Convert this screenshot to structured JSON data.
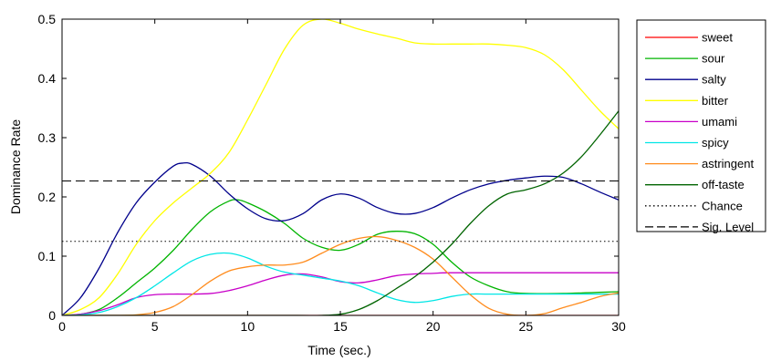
{
  "chart_data": {
    "type": "line",
    "title": "",
    "xlabel": "Time (sec.)",
    "ylabel": "Dominance Rate",
    "xlim": [
      0,
      30
    ],
    "ylim": [
      0,
      0.5
    ],
    "xticks": [
      0,
      5,
      10,
      15,
      20,
      25,
      30
    ],
    "yticks": [
      0,
      0.1,
      0.2,
      0.3,
      0.4,
      0.5
    ],
    "xtick_labels": [
      "0",
      "5",
      "10",
      "15",
      "20",
      "25",
      "30"
    ],
    "ytick_labels": [
      "0",
      "0.1",
      "0.2",
      "0.3",
      "0.4",
      "0.5"
    ],
    "grid": false,
    "legend_position": "outside-right-top",
    "series": [
      {
        "name": "sweet",
        "color": "#ff0000",
        "points": [
          [
            0,
            0
          ],
          [
            5,
            0
          ],
          [
            10,
            0
          ],
          [
            15,
            0
          ],
          [
            20,
            0
          ],
          [
            25,
            0
          ],
          [
            30,
            0
          ]
        ]
      },
      {
        "name": "sour",
        "color": "#00b400",
        "points": [
          [
            0,
            0
          ],
          [
            1,
            0.002
          ],
          [
            2,
            0.01
          ],
          [
            3,
            0.03
          ],
          [
            4,
            0.055
          ],
          [
            5,
            0.08
          ],
          [
            6,
            0.11
          ],
          [
            7,
            0.145
          ],
          [
            8,
            0.175
          ],
          [
            9,
            0.193
          ],
          [
            9.5,
            0.195
          ],
          [
            10,
            0.19
          ],
          [
            11,
            0.175
          ],
          [
            12,
            0.155
          ],
          [
            13,
            0.13
          ],
          [
            14,
            0.115
          ],
          [
            15,
            0.11
          ],
          [
            16,
            0.12
          ],
          [
            17,
            0.137
          ],
          [
            18,
            0.142
          ],
          [
            19,
            0.138
          ],
          [
            20,
            0.12
          ],
          [
            21,
            0.09
          ],
          [
            22,
            0.065
          ],
          [
            23,
            0.05
          ],
          [
            24,
            0.04
          ],
          [
            25,
            0.037
          ],
          [
            27,
            0.037
          ],
          [
            30,
            0.04
          ]
        ]
      },
      {
        "name": "salty",
        "color": "#00008b",
        "points": [
          [
            0,
            0
          ],
          [
            1,
            0.03
          ],
          [
            2,
            0.08
          ],
          [
            3,
            0.14
          ],
          [
            4,
            0.19
          ],
          [
            5,
            0.225
          ],
          [
            6,
            0.252
          ],
          [
            6.5,
            0.257
          ],
          [
            7,
            0.255
          ],
          [
            8,
            0.235
          ],
          [
            9,
            0.205
          ],
          [
            10,
            0.18
          ],
          [
            11,
            0.163
          ],
          [
            12,
            0.16
          ],
          [
            13,
            0.172
          ],
          [
            14,
            0.195
          ],
          [
            15,
            0.205
          ],
          [
            16,
            0.198
          ],
          [
            17,
            0.182
          ],
          [
            18,
            0.172
          ],
          [
            19,
            0.172
          ],
          [
            20,
            0.182
          ],
          [
            21,
            0.198
          ],
          [
            22,
            0.212
          ],
          [
            23,
            0.222
          ],
          [
            24,
            0.228
          ],
          [
            25,
            0.232
          ],
          [
            26,
            0.235
          ],
          [
            27,
            0.233
          ],
          [
            28,
            0.222
          ],
          [
            29,
            0.208
          ],
          [
            30,
            0.195
          ]
        ]
      },
      {
        "name": "bitter",
        "color": "#ffff00",
        "points": [
          [
            0,
            0
          ],
          [
            1,
            0.01
          ],
          [
            2,
            0.03
          ],
          [
            3,
            0.07
          ],
          [
            4,
            0.12
          ],
          [
            5,
            0.16
          ],
          [
            6,
            0.19
          ],
          [
            7,
            0.215
          ],
          [
            8,
            0.24
          ],
          [
            9,
            0.275
          ],
          [
            10,
            0.33
          ],
          [
            11,
            0.39
          ],
          [
            12,
            0.45
          ],
          [
            13,
            0.49
          ],
          [
            14,
            0.5
          ],
          [
            15,
            0.493
          ],
          [
            16,
            0.483
          ],
          [
            17,
            0.475
          ],
          [
            18,
            0.468
          ],
          [
            19,
            0.46
          ],
          [
            20,
            0.458
          ],
          [
            21,
            0.458
          ],
          [
            22,
            0.458
          ],
          [
            23,
            0.458
          ],
          [
            24,
            0.456
          ],
          [
            25,
            0.452
          ],
          [
            26,
            0.44
          ],
          [
            27,
            0.415
          ],
          [
            28,
            0.38
          ],
          [
            29,
            0.345
          ],
          [
            30,
            0.315
          ]
        ]
      },
      {
        "name": "umami",
        "color": "#c800c8",
        "points": [
          [
            0,
            0
          ],
          [
            1,
            0.002
          ],
          [
            2,
            0.008
          ],
          [
            3,
            0.018
          ],
          [
            4,
            0.03
          ],
          [
            5,
            0.035
          ],
          [
            6,
            0.036
          ],
          [
            7,
            0.036
          ],
          [
            8,
            0.037
          ],
          [
            9,
            0.042
          ],
          [
            10,
            0.05
          ],
          [
            11,
            0.06
          ],
          [
            12,
            0.068
          ],
          [
            13,
            0.07
          ],
          [
            14,
            0.065
          ],
          [
            15,
            0.057
          ],
          [
            16,
            0.055
          ],
          [
            17,
            0.06
          ],
          [
            18,
            0.067
          ],
          [
            19,
            0.07
          ],
          [
            20,
            0.071
          ],
          [
            21,
            0.072
          ],
          [
            25,
            0.072
          ],
          [
            30,
            0.072
          ]
        ]
      },
      {
        "name": "spicy",
        "color": "#00e6e6",
        "points": [
          [
            0,
            0
          ],
          [
            1,
            0.001
          ],
          [
            2,
            0.005
          ],
          [
            3,
            0.015
          ],
          [
            4,
            0.03
          ],
          [
            5,
            0.05
          ],
          [
            6,
            0.072
          ],
          [
            7,
            0.092
          ],
          [
            8,
            0.103
          ],
          [
            9,
            0.105
          ],
          [
            10,
            0.097
          ],
          [
            11,
            0.083
          ],
          [
            12,
            0.073
          ],
          [
            13,
            0.068
          ],
          [
            14,
            0.063
          ],
          [
            15,
            0.058
          ],
          [
            16,
            0.05
          ],
          [
            17,
            0.038
          ],
          [
            18,
            0.027
          ],
          [
            19,
            0.022
          ],
          [
            20,
            0.025
          ],
          [
            21,
            0.032
          ],
          [
            22,
            0.036
          ],
          [
            23,
            0.036
          ],
          [
            25,
            0.036
          ],
          [
            30,
            0.036
          ]
        ]
      },
      {
        "name": "astringent",
        "color": "#ff8c1e",
        "points": [
          [
            0,
            0
          ],
          [
            1,
            0
          ],
          [
            3,
            0
          ],
          [
            4,
            0.001
          ],
          [
            5,
            0.005
          ],
          [
            6,
            0.015
          ],
          [
            7,
            0.035
          ],
          [
            8,
            0.058
          ],
          [
            9,
            0.075
          ],
          [
            10,
            0.082
          ],
          [
            11,
            0.085
          ],
          [
            12,
            0.085
          ],
          [
            13,
            0.09
          ],
          [
            14,
            0.105
          ],
          [
            15,
            0.12
          ],
          [
            16,
            0.13
          ],
          [
            17,
            0.133
          ],
          [
            18,
            0.127
          ],
          [
            19,
            0.115
          ],
          [
            20,
            0.095
          ],
          [
            21,
            0.065
          ],
          [
            22,
            0.035
          ],
          [
            23,
            0.012
          ],
          [
            24,
            0.002
          ],
          [
            25,
            0
          ],
          [
            26,
            0.003
          ],
          [
            27,
            0.013
          ],
          [
            28,
            0.022
          ],
          [
            29,
            0.032
          ],
          [
            30,
            0.038
          ]
        ]
      },
      {
        "name": "off-taste",
        "color": "#006400",
        "points": [
          [
            0,
            0
          ],
          [
            10,
            0
          ],
          [
            12,
            0
          ],
          [
            14,
            0
          ],
          [
            15,
            0.002
          ],
          [
            16,
            0.01
          ],
          [
            17,
            0.025
          ],
          [
            18,
            0.045
          ],
          [
            19,
            0.065
          ],
          [
            20,
            0.09
          ],
          [
            21,
            0.12
          ],
          [
            22,
            0.155
          ],
          [
            23,
            0.185
          ],
          [
            24,
            0.205
          ],
          [
            25,
            0.212
          ],
          [
            26,
            0.222
          ],
          [
            27,
            0.24
          ],
          [
            28,
            0.268
          ],
          [
            29,
            0.305
          ],
          [
            30,
            0.345
          ]
        ]
      }
    ],
    "reference_lines": [
      {
        "name": "Chance",
        "y": 0.125,
        "style": "dotted",
        "color": "#000000"
      },
      {
        "name": "Sig. Level",
        "y": 0.227,
        "style": "dashed",
        "color": "#000000"
      }
    ]
  }
}
